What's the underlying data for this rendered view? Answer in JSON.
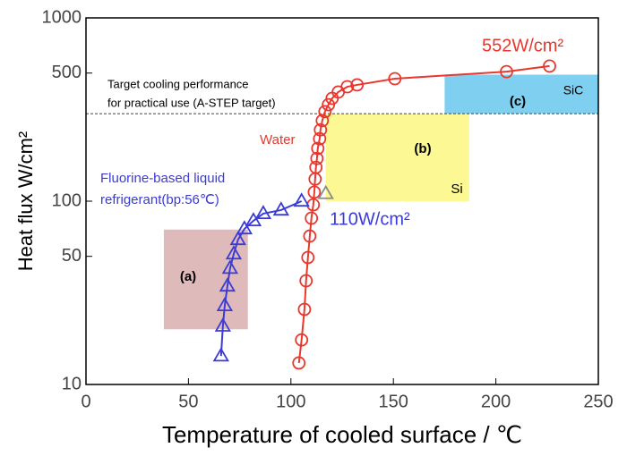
{
  "chart_data": {
    "type": "scatter-line",
    "log_y": true,
    "x_label": "Temperature of cooled surface / ℃",
    "y_label": "Heat flux W/cm²",
    "xlim": [
      0,
      250
    ],
    "xticks": [
      0,
      50,
      100,
      150,
      200,
      250
    ],
    "ylim": [
      10,
      1000
    ],
    "yticks": [
      10,
      50,
      100,
      500,
      1000
    ],
    "series": [
      {
        "name": "Water",
        "color": "#e8382e",
        "marker": "circle",
        "x": [
          103.9,
          105.2,
          106.6,
          107.4,
          108.3,
          109.2,
          110,
          110.9,
          111.4,
          111.8,
          112.2,
          112.7,
          113.1,
          114,
          114.4,
          115.3,
          116.6,
          118.3,
          120.1,
          123.1,
          127.5,
          132.3,
          150.7,
          205.2,
          226.2
        ],
        "values": [
          13.1,
          17.5,
          25.7,
          36.8,
          49.3,
          64.5,
          80.8,
          95.5,
          112,
          132,
          153,
          171,
          194,
          219,
          245,
          275,
          308,
          336,
          364,
          394,
          421,
          431,
          466,
          509,
          546
        ]
      },
      {
        "name": "Fluorine-based liquid refrigerant(bp:56℃)",
        "color": "#3b3bd6",
        "marker": "triangle",
        "x": [
          65.9,
          66.8,
          67.7,
          69,
          70.3,
          72.1,
          74.2,
          77.3,
          81.7,
          86.5,
          95.2,
          105.2
        ],
        "values": [
          14.3,
          20.8,
          26.9,
          34.4,
          43,
          51.5,
          61.7,
          70.6,
          78.2,
          85.5,
          89.4,
          100
        ]
      }
    ],
    "reference_point": {
      "x": 117,
      "y": 110,
      "color": "#8a8a8a"
    },
    "target_line": {
      "y": 300,
      "color": "#555555"
    },
    "regions": [
      {
        "label": "(a)",
        "xlim": [
          38,
          79
        ],
        "ylim": [
          20,
          70
        ],
        "color": "#d7a9a9"
      },
      {
        "label": "(b)",
        "sublabel": "Si",
        "xlim": [
          117,
          187
        ],
        "ylim": [
          100,
          300
        ],
        "color": "#fbf77a"
      },
      {
        "label": "(c)",
        "sublabel": "SiC",
        "xlim": [
          175,
          250
        ],
        "ylim": [
          300,
          490
        ],
        "color": "#5fc3ec"
      }
    ],
    "annotations": [
      "552W/cm²",
      "110W/cm²",
      "Target cooling performance",
      "for practical use (A-STEP target)"
    ]
  }
}
